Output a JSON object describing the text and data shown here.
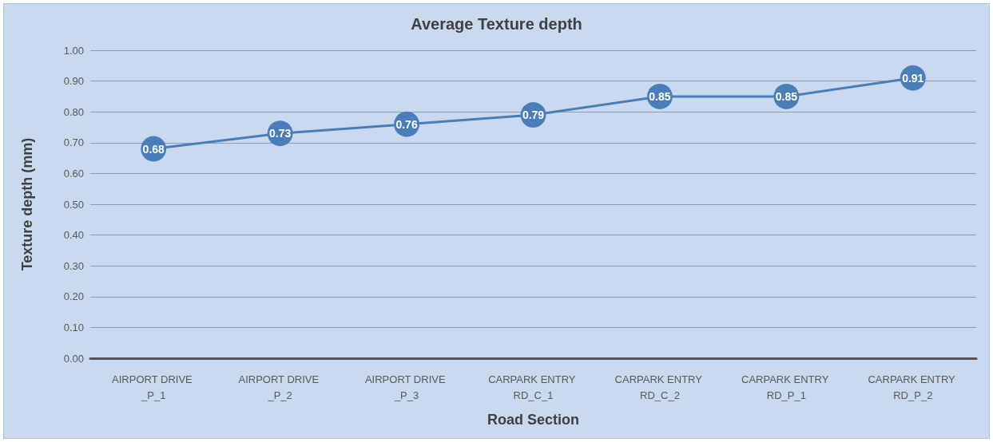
{
  "chart_data": {
    "type": "line",
    "title": "Average Texture depth",
    "xlabel": "Road Section",
    "ylabel": "Texture depth (mm)",
    "categories": [
      "AIRPORT DRIVE _P_1",
      "AIRPORT DRIVE _P_2",
      "AIRPORT DRIVE _P_3",
      "CARPARK ENTRY RD_C_1",
      "CARPARK ENTRY RD_C_2",
      "CARPARK ENTRY RD_P_1",
      "CARPARK ENTRY RD_P_2"
    ],
    "series": [
      {
        "color": "#4a7ebb",
        "values": [
          0.68,
          0.73,
          0.76,
          0.79,
          0.85,
          0.85,
          0.91
        ]
      }
    ],
    "ylim": [
      0,
      1
    ],
    "yticks": [
      {
        "value": 0,
        "label": "0.00"
      },
      {
        "value": 0.1,
        "label": "0.10"
      },
      {
        "value": 0.2,
        "label": "0.20"
      },
      {
        "value": 0.3,
        "label": "0.30"
      },
      {
        "value": 0.4,
        "label": "0.40"
      },
      {
        "value": 0.5,
        "label": "0.50"
      },
      {
        "value": 0.6,
        "label": "0.60"
      },
      {
        "value": 0.7,
        "label": "0.70"
      },
      {
        "value": 0.8,
        "label": "0.80"
      },
      {
        "value": 0.9,
        "label": "0.90"
      },
      {
        "value": 1,
        "label": "1.00"
      }
    ],
    "grid": "y",
    "marker": "circle",
    "line_style": "solid",
    "data_labels": true
  }
}
